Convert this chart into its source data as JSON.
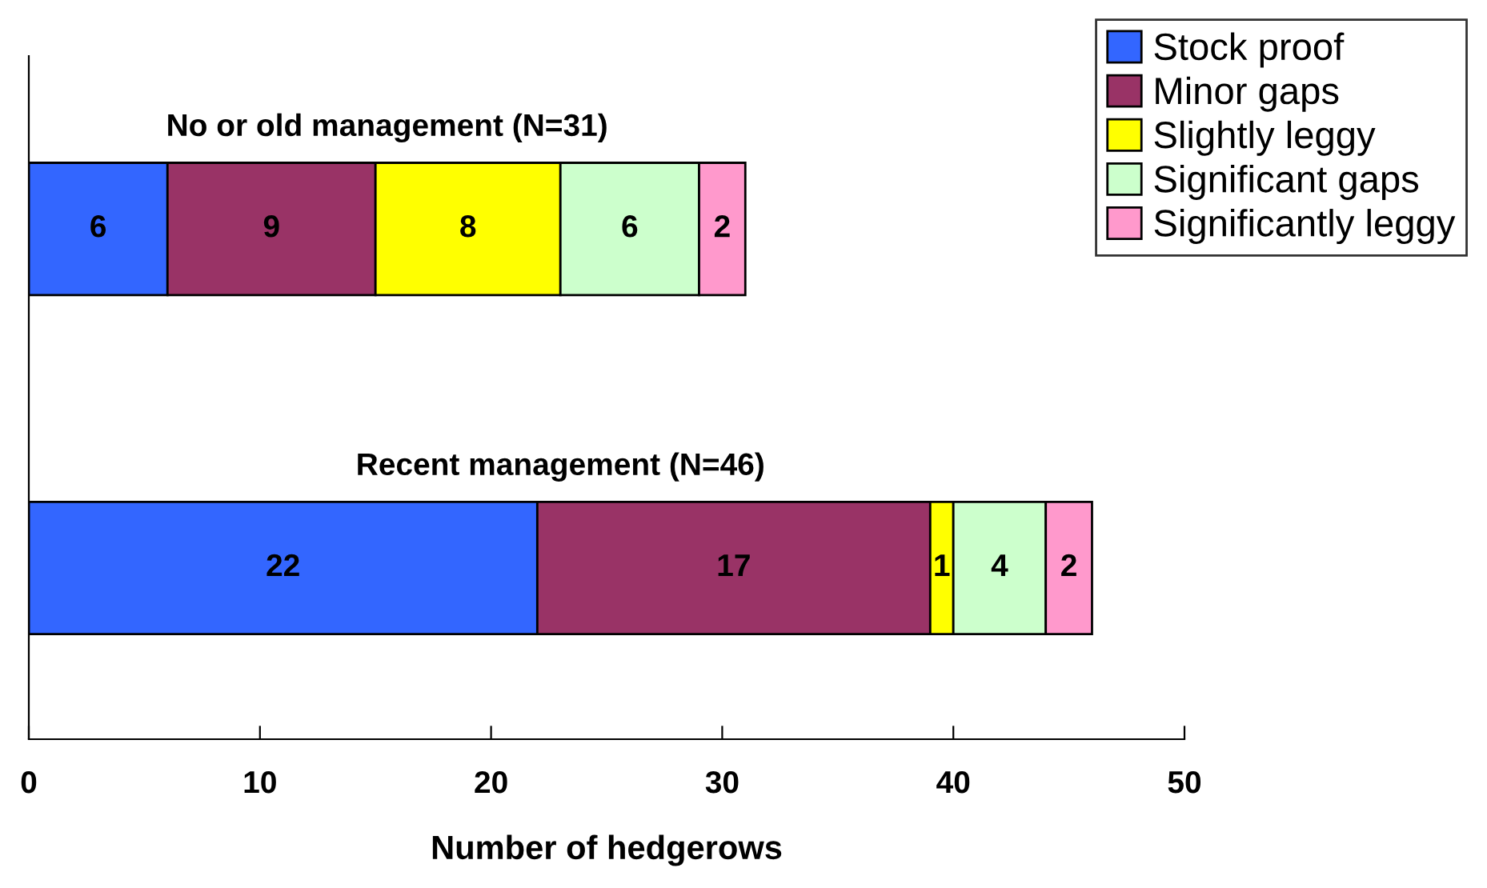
{
  "chart_data": {
    "type": "bar",
    "orientation": "horizontal",
    "stacked": true,
    "xlabel": "Number of hedgerows",
    "categories": [
      "No or old management (N=31)",
      "Recent management (N=46)"
    ],
    "series": [
      {
        "name": "Stock proof",
        "color": "#3366ff",
        "values": [
          6,
          22
        ]
      },
      {
        "name": "Minor gaps",
        "color": "#993366",
        "values": [
          9,
          17
        ]
      },
      {
        "name": "Slightly leggy",
        "color": "#ffff00",
        "values": [
          8,
          1
        ]
      },
      {
        "name": "Significant gaps",
        "color": "#ccffcc",
        "values": [
          6,
          4
        ]
      },
      {
        "name": "Significantly leggy",
        "color": "#ff99cc",
        "values": [
          2,
          2
        ]
      }
    ],
    "xlim": [
      0,
      50
    ],
    "xticks": [
      0,
      10,
      20,
      30,
      40,
      50
    ],
    "data_labels": true,
    "legend": "top right",
    "grid": false
  }
}
